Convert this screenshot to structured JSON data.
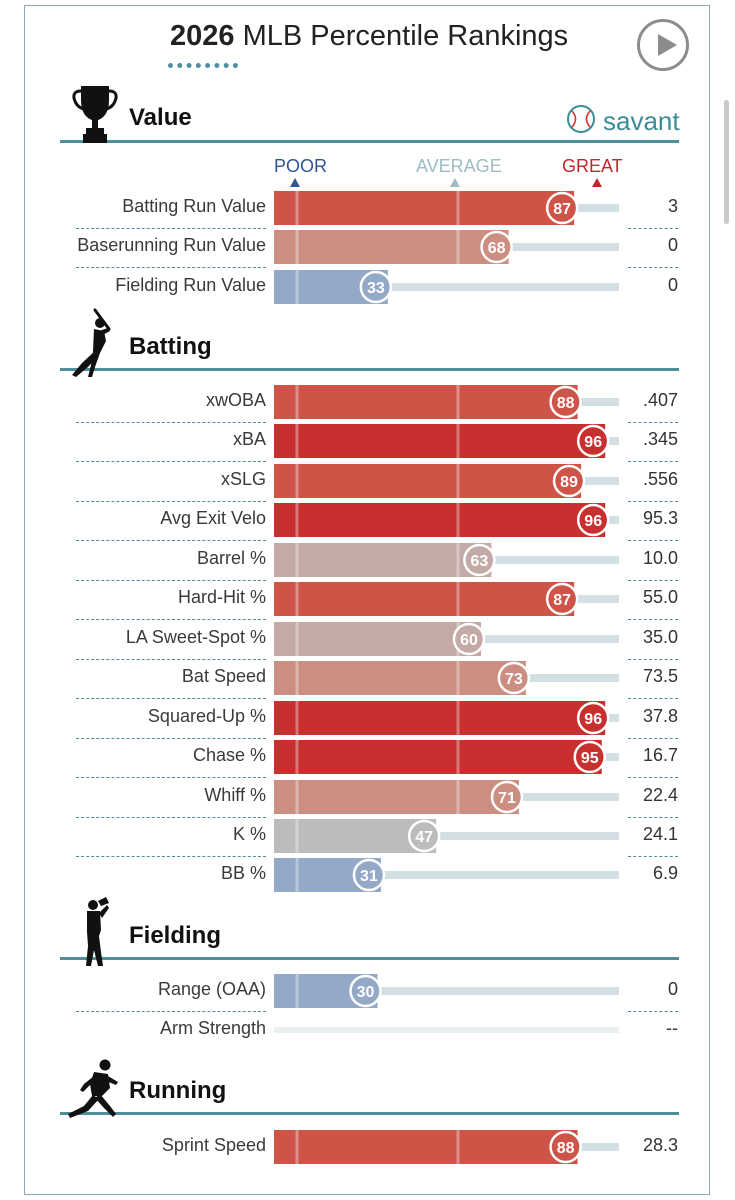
{
  "header": {
    "title_year": "2026",
    "title_rest": "MLB Percentile Rankings",
    "brand": "savant"
  },
  "legend": {
    "poor": "POOR",
    "average": "AVERAGE",
    "great": "GREAT"
  },
  "sections": [
    {
      "title": "Value",
      "icon": "trophy-icon",
      "metrics": [
        {
          "label": "Batting Run Value",
          "percentile": 87,
          "value": "3"
        },
        {
          "label": "Baserunning Run Value",
          "percentile": 68,
          "value": "0"
        },
        {
          "label": "Fielding Run Value",
          "percentile": 33,
          "value": "0"
        }
      ]
    },
    {
      "title": "Batting",
      "icon": "batter-icon",
      "metrics": [
        {
          "label": "xwOBA",
          "percentile": 88,
          "value": ".407"
        },
        {
          "label": "xBA",
          "percentile": 96,
          "value": ".345"
        },
        {
          "label": "xSLG",
          "percentile": 89,
          "value": ".556"
        },
        {
          "label": "Avg Exit Velo",
          "percentile": 96,
          "value": "95.3"
        },
        {
          "label": "Barrel %",
          "percentile": 63,
          "value": "10.0"
        },
        {
          "label": "Hard-Hit %",
          "percentile": 87,
          "value": "55.0"
        },
        {
          "label": "LA Sweet-Spot %",
          "percentile": 60,
          "value": "35.0"
        },
        {
          "label": "Bat Speed",
          "percentile": 73,
          "value": "73.5"
        },
        {
          "label": "Squared-Up %",
          "percentile": 96,
          "value": "37.8"
        },
        {
          "label": "Chase %",
          "percentile": 95,
          "value": "16.7"
        },
        {
          "label": "Whiff %",
          "percentile": 71,
          "value": "22.4"
        },
        {
          "label": "K %",
          "percentile": 47,
          "value": "24.1"
        },
        {
          "label": "BB %",
          "percentile": 31,
          "value": "6.9"
        }
      ]
    },
    {
      "title": "Fielding",
      "icon": "fielder-icon",
      "metrics": [
        {
          "label": "Range (OAA)",
          "percentile": 30,
          "value": "0"
        },
        {
          "label": "Arm Strength",
          "percentile": null,
          "value": "--"
        }
      ]
    },
    {
      "title": "Running",
      "icon": "runner-icon",
      "metrics": [
        {
          "label": "Sprint Speed",
          "percentile": 88,
          "value": "28.3"
        }
      ]
    }
  ],
  "chart_data": {
    "type": "bar",
    "title": "2026 MLB Percentile Rankings",
    "xlim": [
      0,
      100
    ],
    "categories": [
      "Batting Run Value",
      "Baserunning Run Value",
      "Fielding Run Value",
      "xwOBA",
      "xBA",
      "xSLG",
      "Avg Exit Velo",
      "Barrel %",
      "Hard-Hit %",
      "LA Sweet-Spot %",
      "Bat Speed",
      "Squared-Up %",
      "Chase %",
      "Whiff %",
      "K %",
      "BB %",
      "Range (OAA)",
      "Arm Strength",
      "Sprint Speed"
    ],
    "values": [
      87,
      68,
      33,
      88,
      96,
      89,
      96,
      63,
      87,
      60,
      73,
      96,
      95,
      71,
      47,
      31,
      30,
      null,
      88
    ],
    "colors": {
      "great": "#c7302f",
      "good": "#cd5447",
      "above_avg": "#cd8e82",
      "slightly_above": "#c4aaa6",
      "average": "#bcbcbc",
      "below_avg": "#b4cdd2",
      "poor": "#94a9c7",
      "track": "#d3e0e3",
      "empty_track": "#e9f0f2"
    }
  }
}
